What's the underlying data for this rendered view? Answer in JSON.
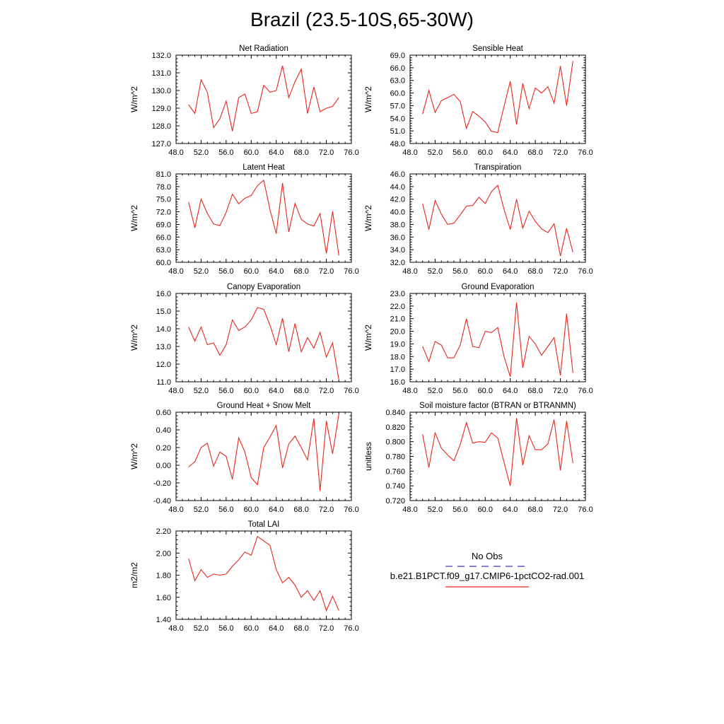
{
  "title": "Brazil (23.5-10S,65-30W)",
  "colors": {
    "model_line": "#e8281c",
    "obs_line": "#3a3ab0",
    "axis": "#000000"
  },
  "legend": {
    "obs_label": "No Obs",
    "model_label": "b.e21.B1PCT.f09_g17.CMIP6-1pctCO2-rad.001"
  },
  "chart_data": [
    {
      "type": "line",
      "title": "Net Radiation",
      "ylabel": "W/m^2",
      "xlim": [
        48,
        76
      ],
      "ylim": [
        127,
        132
      ],
      "x_ticks": [
        "48.0",
        "52.0",
        "56.0",
        "60.0",
        "64.0",
        "68.0",
        "72.0",
        "76.0"
      ],
      "y_ticks": [
        "127.0",
        "128.0",
        "129.0",
        "130.0",
        "131.0",
        "132.0"
      ],
      "grid": false,
      "series": [
        {
          "x": [
            50,
            51,
            52,
            53,
            54,
            55,
            56,
            57,
            58,
            59,
            60,
            61,
            62,
            63,
            64,
            65,
            66,
            67,
            68,
            69,
            70,
            71,
            72,
            73,
            74
          ],
          "values": [
            129.2,
            128.7,
            130.6,
            129.9,
            127.9,
            128.4,
            129.4,
            127.7,
            129.6,
            129.8,
            128.7,
            128.8,
            130.3,
            129.9,
            130.0,
            131.4,
            129.6,
            130.5,
            131.2,
            128.7,
            130.2,
            128.8,
            129.0,
            129.1,
            129.6
          ]
        }
      ]
    },
    {
      "type": "line",
      "title": "Sensible Heat",
      "ylabel": "W/m^2",
      "xlim": [
        48,
        76
      ],
      "ylim": [
        48,
        69
      ],
      "x_ticks": [
        "48.0",
        "52.0",
        "56.0",
        "60.0",
        "64.0",
        "68.0",
        "72.0",
        "76.0"
      ],
      "y_ticks": [
        "48.0",
        "51.0",
        "54.0",
        "57.0",
        "60.0",
        "63.0",
        "66.0",
        "69.0"
      ],
      "grid": false,
      "series": [
        {
          "x": [
            50,
            51,
            52,
            53,
            54,
            55,
            56,
            57,
            58,
            59,
            60,
            61,
            62,
            63,
            64,
            65,
            66,
            67,
            68,
            69,
            70,
            71,
            72,
            73,
            74
          ],
          "values": [
            55.0,
            60.6,
            55.4,
            58.2,
            58.9,
            59.7,
            58.0,
            51.6,
            55.6,
            54.5,
            53.1,
            50.9,
            50.6,
            56.8,
            62.8,
            52.5,
            62.3,
            56.3,
            61.2,
            60.0,
            61.5,
            57.6,
            66.4,
            57.0,
            67.6
          ]
        }
      ]
    },
    {
      "type": "line",
      "title": "Latent Heat",
      "ylabel": "W/m^2",
      "xlim": [
        48,
        76
      ],
      "ylim": [
        60,
        81
      ],
      "x_ticks": [
        "48.0",
        "52.0",
        "56.0",
        "60.0",
        "64.0",
        "68.0",
        "72.0",
        "76.0"
      ],
      "y_ticks": [
        "60.0",
        "63.0",
        "66.0",
        "69.0",
        "72.0",
        "75.0",
        "78.0",
        "81.0"
      ],
      "grid": false,
      "series": [
        {
          "x": [
            50,
            51,
            52,
            53,
            54,
            55,
            56,
            57,
            58,
            59,
            60,
            61,
            62,
            63,
            64,
            65,
            66,
            67,
            68,
            69,
            70,
            71,
            72,
            73,
            74
          ],
          "values": [
            74.3,
            68.2,
            75.0,
            71.6,
            69.1,
            68.7,
            71.9,
            76.2,
            73.9,
            75.2,
            75.9,
            78.2,
            79.5,
            72.5,
            66.8,
            78.8,
            67.2,
            74.0,
            70.2,
            69.1,
            68.6,
            71.6,
            62.1,
            72.1,
            61.6
          ]
        }
      ]
    },
    {
      "type": "line",
      "title": "Transpiration",
      "ylabel": "W/m^2",
      "xlim": [
        48,
        76
      ],
      "ylim": [
        32,
        46
      ],
      "x_ticks": [
        "48.0",
        "52.0",
        "56.0",
        "60.0",
        "64.0",
        "68.0",
        "72.0",
        "76.0"
      ],
      "y_ticks": [
        "32.0",
        "34.0",
        "36.0",
        "38.0",
        "40.0",
        "42.0",
        "44.0",
        "46.0"
      ],
      "grid": false,
      "series": [
        {
          "x": [
            50,
            51,
            52,
            53,
            54,
            55,
            56,
            57,
            58,
            59,
            60,
            61,
            62,
            63,
            64,
            65,
            66,
            67,
            68,
            69,
            70,
            71,
            72,
            73,
            74
          ],
          "values": [
            41.3,
            37.2,
            41.8,
            39.6,
            38.0,
            38.2,
            39.5,
            40.9,
            41.0,
            42.3,
            41.3,
            43.2,
            44.2,
            40.4,
            37.2,
            42.0,
            37.4,
            40.1,
            38.5,
            37.3,
            36.7,
            38.1,
            33.0,
            37.4,
            33.6
          ]
        }
      ]
    },
    {
      "type": "line",
      "title": "Canopy Evaporation",
      "ylabel": "W/m^2",
      "xlim": [
        48,
        76
      ],
      "ylim": [
        11,
        16
      ],
      "x_ticks": [
        "48.0",
        "52.0",
        "56.0",
        "60.0",
        "64.0",
        "68.0",
        "72.0",
        "76.0"
      ],
      "y_ticks": [
        "11.0",
        "12.0",
        "13.0",
        "14.0",
        "15.0",
        "16.0"
      ],
      "grid": false,
      "series": [
        {
          "x": [
            50,
            51,
            52,
            53,
            54,
            55,
            56,
            57,
            58,
            59,
            60,
            61,
            62,
            63,
            64,
            65,
            66,
            67,
            68,
            69,
            70,
            71,
            72,
            73,
            74
          ],
          "values": [
            14.1,
            13.3,
            14.1,
            13.1,
            13.2,
            12.5,
            13.1,
            14.5,
            13.9,
            14.1,
            14.5,
            15.2,
            15.1,
            14.2,
            13.1,
            14.6,
            12.7,
            14.3,
            12.7,
            13.5,
            12.9,
            13.8,
            12.4,
            13.2,
            11.1
          ]
        }
      ]
    },
    {
      "type": "line",
      "title": "Ground Evaporation",
      "ylabel": "W/m^2",
      "xlim": [
        48,
        76
      ],
      "ylim": [
        16,
        23
      ],
      "x_ticks": [
        "48.0",
        "52.0",
        "56.0",
        "60.0",
        "64.0",
        "68.0",
        "72.0",
        "76.0"
      ],
      "y_ticks": [
        "16.0",
        "17.0",
        "18.0",
        "19.0",
        "20.0",
        "21.0",
        "22.0",
        "23.0"
      ],
      "grid": false,
      "series": [
        {
          "x": [
            50,
            51,
            52,
            53,
            54,
            55,
            56,
            57,
            58,
            59,
            60,
            61,
            62,
            63,
            64,
            65,
            66,
            67,
            68,
            69,
            70,
            71,
            72,
            73,
            74
          ],
          "values": [
            18.8,
            17.6,
            19.2,
            18.9,
            17.9,
            17.9,
            18.9,
            21.0,
            18.8,
            18.7,
            20.0,
            19.9,
            20.3,
            18.0,
            16.4,
            22.3,
            17.1,
            19.6,
            19.0,
            18.1,
            18.8,
            19.5,
            16.5,
            21.4,
            16.7
          ]
        }
      ]
    },
    {
      "type": "line",
      "title": "Ground Heat + Snow Melt",
      "ylabel": "W/m^2",
      "xlim": [
        48,
        76
      ],
      "ylim": [
        -0.4,
        0.6
      ],
      "x_ticks": [
        "48.0",
        "52.0",
        "56.0",
        "60.0",
        "64.0",
        "68.0",
        "72.0",
        "76.0"
      ],
      "y_ticks": [
        "-0.40",
        "-0.20",
        "0.00",
        "0.20",
        "0.40",
        "0.60"
      ],
      "grid": false,
      "series": [
        {
          "x": [
            50,
            51,
            52,
            53,
            54,
            55,
            56,
            57,
            58,
            59,
            60,
            61,
            62,
            63,
            64,
            65,
            66,
            67,
            68,
            69,
            70,
            71,
            72,
            73,
            74
          ],
          "values": [
            -0.02,
            0.04,
            0.2,
            0.25,
            -0.01,
            0.15,
            0.1,
            -0.16,
            0.31,
            0.15,
            -0.14,
            -0.22,
            0.2,
            0.32,
            0.45,
            -0.03,
            0.24,
            0.33,
            0.2,
            0.06,
            0.53,
            -0.29,
            0.5,
            0.13,
            0.58
          ]
        }
      ]
    },
    {
      "type": "line",
      "title": "Soil moisture factor (BTRAN or BTRANMN)",
      "ylabel": "unitless",
      "xlim": [
        48,
        76
      ],
      "ylim": [
        0.72,
        0.84
      ],
      "x_ticks": [
        "48.0",
        "52.0",
        "56.0",
        "60.0",
        "64.0",
        "68.0",
        "72.0",
        "76.0"
      ],
      "y_ticks": [
        "0.720",
        "0.740",
        "0.760",
        "0.780",
        "0.800",
        "0.820",
        "0.840"
      ],
      "grid": false,
      "series": [
        {
          "x": [
            50,
            51,
            52,
            53,
            54,
            55,
            56,
            57,
            58,
            59,
            60,
            61,
            62,
            63,
            64,
            65,
            66,
            67,
            68,
            69,
            70,
            71,
            72,
            73,
            74
          ],
          "values": [
            0.81,
            0.765,
            0.812,
            0.791,
            0.782,
            0.774,
            0.796,
            0.826,
            0.798,
            0.8,
            0.799,
            0.812,
            0.805,
            0.772,
            0.74,
            0.832,
            0.768,
            0.808,
            0.789,
            0.789,
            0.797,
            0.83,
            0.761,
            0.828,
            0.771
          ]
        }
      ]
    },
    {
      "type": "line",
      "title": "Total LAI",
      "ylabel": "m2/m2",
      "xlim": [
        48,
        76
      ],
      "ylim": [
        1.4,
        2.2
      ],
      "x_ticks": [
        "48.0",
        "52.0",
        "56.0",
        "60.0",
        "64.0",
        "68.0",
        "72.0",
        "76.0"
      ],
      "y_ticks": [
        "1.40",
        "1.60",
        "1.80",
        "2.00",
        "2.20"
      ],
      "grid": false,
      "series": [
        {
          "x": [
            50,
            51,
            52,
            53,
            54,
            55,
            56,
            57,
            58,
            59,
            60,
            61,
            62,
            63,
            64,
            65,
            66,
            67,
            68,
            69,
            70,
            71,
            72,
            73,
            74
          ],
          "values": [
            1.95,
            1.75,
            1.85,
            1.78,
            1.81,
            1.8,
            1.81,
            1.88,
            1.94,
            2.01,
            1.98,
            2.15,
            2.11,
            2.07,
            1.85,
            1.73,
            1.78,
            1.71,
            1.6,
            1.66,
            1.57,
            1.66,
            1.48,
            1.61,
            1.48
          ]
        }
      ]
    }
  ]
}
